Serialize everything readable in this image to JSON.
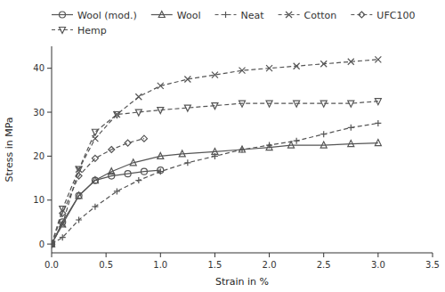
{
  "chart_data": {
    "type": "line",
    "xlabel": "Strain in %",
    "ylabel": "Stress in MPa",
    "xlim": [
      0,
      3.5
    ],
    "ylim": [
      -2,
      45
    ],
    "xticks": [
      {
        "value": 0.0,
        "label": "0.0"
      },
      0.5,
      {
        "value": 1.0,
        "label": "1.0"
      },
      1.5,
      {
        "value": 2.0,
        "label": "2.0"
      },
      2.5,
      {
        "value": 3.0,
        "label": "3.0"
      },
      3.5
    ],
    "yticks": [
      0,
      10,
      20,
      30,
      40
    ],
    "legend": "upper left",
    "series": [
      {
        "name": "Wool (mod.)",
        "color": "#555555",
        "marker": "circle",
        "line_style": "solid",
        "x": [
          0.0,
          0.1,
          0.25,
          0.4,
          0.55,
          0.7,
          0.85,
          1.0
        ],
        "values": [
          0.0,
          5.0,
          11.0,
          14.5,
          15.5,
          16.0,
          16.5,
          16.8
        ]
      },
      {
        "name": "Wool",
        "color": "#555555",
        "marker": "triangle-up",
        "line_style": "solid",
        "x": [
          0.0,
          0.1,
          0.25,
          0.4,
          0.55,
          0.75,
          1.0,
          1.2,
          1.5,
          1.75,
          2.0,
          2.2,
          2.5,
          2.75,
          3.0
        ],
        "values": [
          0.0,
          4.5,
          11.0,
          14.5,
          16.5,
          18.5,
          20.0,
          20.5,
          21.0,
          21.5,
          22.0,
          22.5,
          22.5,
          22.8,
          23.0
        ]
      },
      {
        "name": "Neat",
        "color": "#555555",
        "marker": "plus",
        "line_style": "dashed",
        "x": [
          0.0,
          0.1,
          0.25,
          0.4,
          0.6,
          0.8,
          1.0,
          1.25,
          1.5,
          1.75,
          2.0,
          2.25,
          2.5,
          2.75,
          3.0
        ],
        "values": [
          0.0,
          1.5,
          5.5,
          8.5,
          12.0,
          14.5,
          16.5,
          18.5,
          20.0,
          21.5,
          22.5,
          23.5,
          25.0,
          26.5,
          27.5
        ]
      },
      {
        "name": "Cotton",
        "color": "#555555",
        "marker": "cross",
        "line_style": "dashed",
        "x": [
          0.0,
          0.1,
          0.25,
          0.4,
          0.6,
          0.8,
          1.0,
          1.25,
          1.5,
          1.75,
          2.0,
          2.25,
          2.5,
          2.75,
          3.0
        ],
        "values": [
          0.0,
          4.5,
          17.0,
          24.0,
          29.5,
          33.5,
          36.0,
          37.5,
          38.5,
          39.5,
          40.0,
          40.5,
          41.0,
          41.5,
          42.0
        ]
      },
      {
        "name": "UFC100",
        "color": "#555555",
        "marker": "diamond",
        "line_style": "dashed",
        "x": [
          0.0,
          0.1,
          0.25,
          0.4,
          0.55,
          0.7,
          0.85
        ],
        "values": [
          0.0,
          7.0,
          15.5,
          19.5,
          21.5,
          23.0,
          24.0
        ]
      },
      {
        "name": "Hemp",
        "color": "#555555",
        "marker": "triangle-down",
        "line_style": "dashed",
        "x": [
          0.0,
          0.1,
          0.25,
          0.4,
          0.6,
          0.8,
          1.0,
          1.25,
          1.5,
          1.75,
          2.0,
          2.25,
          2.5,
          2.75,
          3.0
        ],
        "values": [
          0.0,
          8.0,
          17.0,
          25.5,
          29.5,
          30.0,
          30.5,
          31.0,
          31.5,
          32.0,
          32.0,
          32.0,
          32.0,
          32.0,
          32.5
        ]
      }
    ]
  }
}
